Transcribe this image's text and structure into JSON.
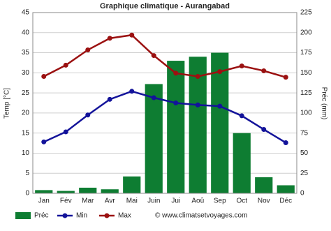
{
  "chart_data": {
    "type": "bar",
    "title": "Graphique climatique - Aurangabad",
    "categories": [
      "Jan",
      "Fév",
      "Mar",
      "Avr",
      "Mai",
      "Juin",
      "Jui",
      "Aoû",
      "Sep",
      "Oct",
      "Nov",
      "Déc"
    ],
    "series": [
      {
        "name": "Préc",
        "type": "bar",
        "axis": "y2",
        "color": "#0e7d32",
        "values": [
          4,
          3,
          7,
          5,
          21,
          136,
          165,
          170,
          175,
          75,
          20,
          10
        ]
      },
      {
        "name": "Min",
        "type": "line",
        "color": "#13139a",
        "values": [
          12.8,
          15.3,
          19.5,
          23.4,
          25.4,
          23.8,
          22.5,
          22,
          21.7,
          19.3,
          15.9,
          12.6
        ]
      },
      {
        "name": "Max",
        "type": "line",
        "color": "#9b1111",
        "values": [
          29.1,
          31.9,
          35.7,
          38.6,
          39.4,
          34.3,
          29.9,
          29.1,
          30.3,
          31.7,
          30.5,
          28.9
        ]
      }
    ],
    "ylabel": "Temp [°C]",
    "y2label": "Préc (mm)",
    "ylim": [
      0,
      45
    ],
    "yticks": [
      0,
      5,
      10,
      15,
      20,
      25,
      30,
      35,
      40,
      45
    ],
    "y2lim": [
      0,
      225
    ],
    "y2ticks": [
      0,
      25,
      50,
      75,
      100,
      125,
      150,
      175,
      200,
      225
    ],
    "grid": true,
    "legend": "bottom",
    "watermark": "© www.climatsetvoyages.com"
  }
}
